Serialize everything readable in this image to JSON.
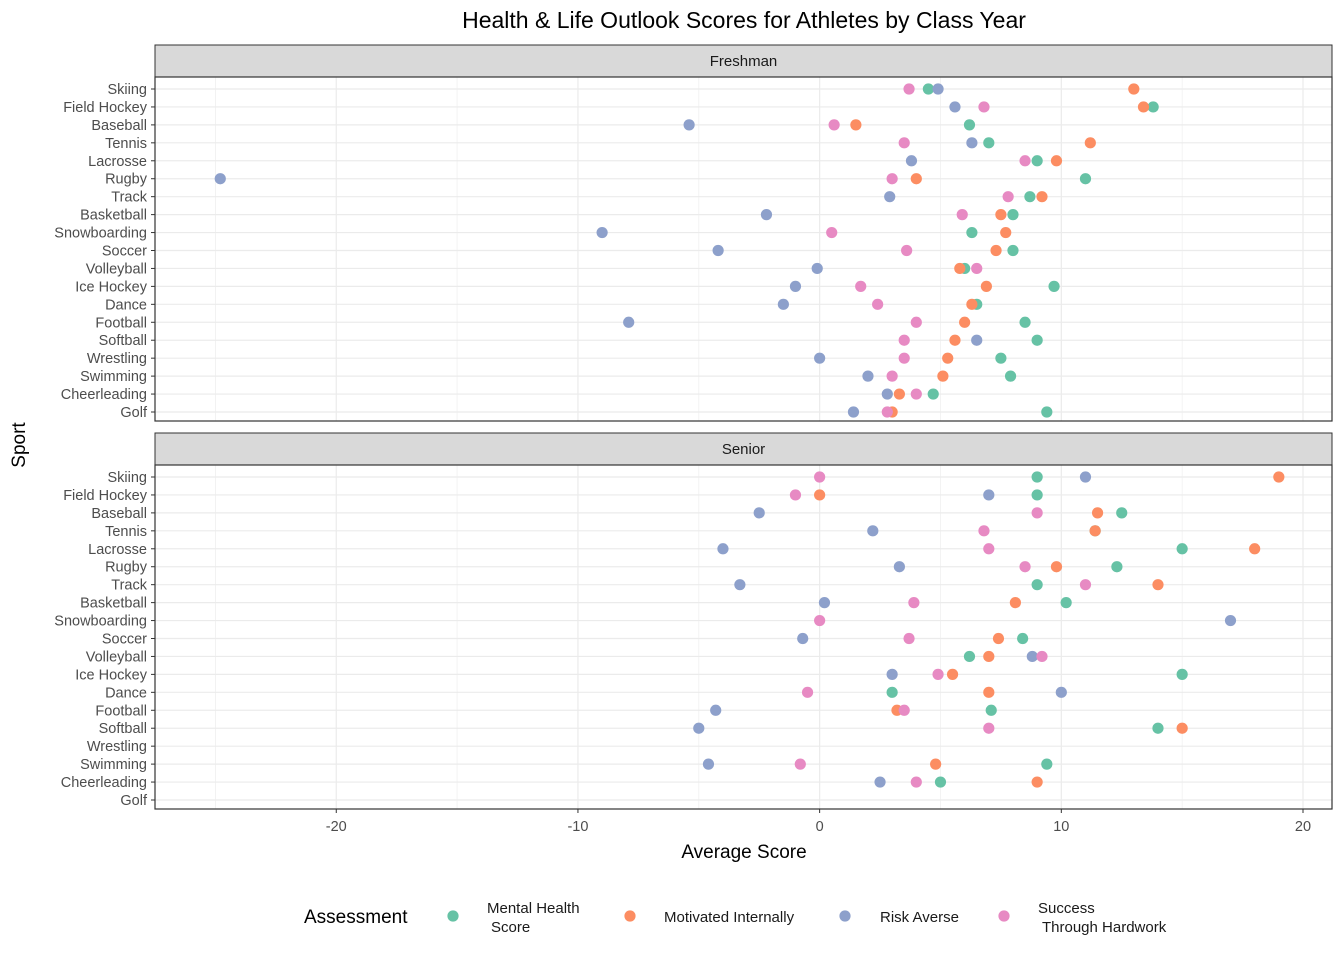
{
  "chart_data": {
    "type": "scatter",
    "title": "Health & Life Outlook Scores for Athletes by Class Year",
    "xlabel": "Average Score",
    "ylabel": "Sport",
    "xlim": [
      -27.5,
      21.2
    ],
    "x_ticks": [
      -20,
      -10,
      0,
      10,
      20
    ],
    "grid": true,
    "legend": {
      "title": "Assessment",
      "position": "bottom",
      "entries": [
        {
          "key": "mh",
          "lines": [
            "Mental Health",
            "Score"
          ],
          "color": "#66C2A5"
        },
        {
          "key": "mi",
          "lines": [
            "Motivated Internally"
          ],
          "color": "#FC8D62"
        },
        {
          "key": "ra",
          "lines": [
            "Risk Averse"
          ],
          "color": "#8DA0CB"
        },
        {
          "key": "sh",
          "lines": [
            "Success",
            "Through Hardwork"
          ],
          "color": "#E78AC3"
        }
      ]
    },
    "sports": [
      "Skiing",
      "Field Hockey",
      "Baseball",
      "Tennis",
      "Lacrosse",
      "Rugby",
      "Track",
      "Basketball",
      "Snowboarding",
      "Soccer",
      "Volleyball",
      "Ice Hockey",
      "Dance",
      "Football",
      "Softball",
      "Wrestling",
      "Swimming",
      "Cheerleading",
      "Golf"
    ],
    "panels": [
      {
        "label": "Freshman",
        "series": {
          "mh": [
            4.5,
            13.8,
            6.2,
            7.0,
            9.0,
            11.0,
            8.7,
            8.0,
            6.3,
            8.0,
            6.0,
            9.7,
            6.5,
            8.5,
            9.0,
            7.5,
            7.9,
            4.7,
            9.4
          ],
          "mi": [
            13.0,
            13.4,
            1.5,
            11.2,
            9.8,
            4.0,
            9.2,
            7.5,
            7.7,
            7.3,
            5.8,
            6.9,
            6.3,
            6.0,
            5.6,
            5.3,
            5.1,
            3.3,
            3.0
          ],
          "ra": [
            4.9,
            5.6,
            -5.4,
            6.3,
            3.8,
            -24.8,
            2.9,
            -2.2,
            -9.0,
            -4.2,
            -0.1,
            -1.0,
            -1.5,
            -7.9,
            6.5,
            0.0,
            2.0,
            2.8,
            1.4
          ],
          "sh": [
            3.7,
            6.8,
            0.6,
            3.5,
            8.5,
            3.0,
            7.8,
            5.9,
            0.5,
            3.6,
            6.5,
            1.7,
            2.4,
            4.0,
            3.5,
            3.5,
            3.0,
            4.0,
            2.8
          ]
        }
      },
      {
        "label": "Senior",
        "series": {
          "mh": [
            9.0,
            9.0,
            12.5,
            11.4,
            15.0,
            12.3,
            9.0,
            10.2,
            null,
            8.4,
            6.2,
            15.0,
            3.0,
            7.1,
            14.0,
            null,
            9.4,
            5.0,
            null
          ],
          "mi": [
            19.0,
            0.0,
            11.5,
            11.4,
            18.0,
            9.8,
            14.0,
            8.1,
            null,
            7.4,
            7.0,
            5.5,
            7.0,
            3.2,
            15.0,
            null,
            4.8,
            9.0,
            null
          ],
          "ra": [
            11.0,
            7.0,
            -2.5,
            2.2,
            -4.0,
            3.3,
            -3.3,
            0.2,
            17.0,
            -0.7,
            8.8,
            3.0,
            10.0,
            -4.3,
            -5.0,
            null,
            -4.6,
            2.5,
            null
          ],
          "sh": [
            0.0,
            -1.0,
            9.0,
            6.8,
            7.0,
            8.5,
            11.0,
            3.9,
            0.0,
            3.7,
            9.2,
            4.9,
            -0.5,
            3.5,
            7.0,
            null,
            -0.8,
            4.0,
            null
          ]
        }
      }
    ]
  }
}
